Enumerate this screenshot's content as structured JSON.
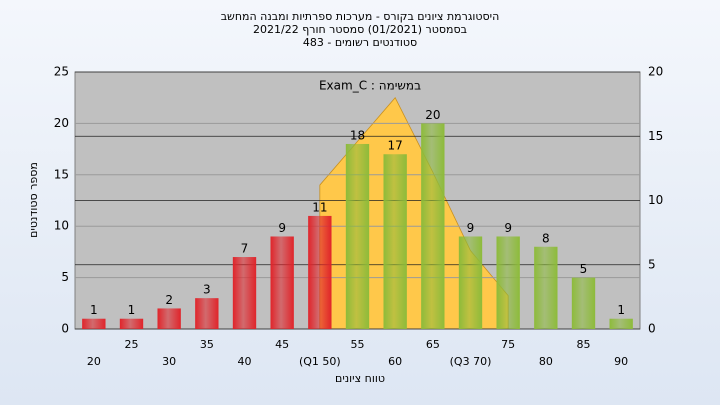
{
  "chart_data": {
    "type": "bar",
    "title": "היסטוגרמת ציונים בקורס - מערכות ספרתיות ומבנה המחשב",
    "subtitle": "בסמסטר  (01/2021)  סמסטר חורף  2021/22",
    "subtitle2": "483 - סטודנטים רשומים",
    "annotation": "במשימה : Exam_C",
    "x_label": "טווח ציונים",
    "y_label": "מספר סטודנטים",
    "categories": [
      "20",
      "25",
      "30",
      "35",
      "40",
      "45",
      "(Q1 50)",
      "55",
      "60",
      "65",
      "(Q3 70)",
      "75",
      "80",
      "85",
      "90"
    ],
    "values": [
      1,
      1,
      2,
      3,
      7,
      9,
      11,
      18,
      17,
      20,
      9,
      9,
      8,
      5,
      1
    ],
    "colors": [
      "#e0242a",
      "#e0242a",
      "#e0242a",
      "#e0242a",
      "#e0242a",
      "#e0242a",
      "#e0242a",
      "#8dbb3a",
      "#8dbb3a",
      "#8dbb3a",
      "#8dbb3a",
      "#8dbb3a",
      "#8dbb3a",
      "#8dbb3a",
      "#8dbb3a"
    ],
    "area": {
      "color": "#ffc84a",
      "axis": "y2",
      "values": [
        null,
        null,
        null,
        null,
        null,
        null,
        11.2,
        14.6,
        18,
        12.2,
        6.1,
        2.6,
        null,
        null,
        null
      ]
    },
    "ylim": [
      0,
      25
    ],
    "yticks": [
      0,
      5,
      10,
      15,
      20,
      25
    ],
    "y2lim": [
      0,
      20
    ],
    "y2ticks": [
      0,
      5,
      10,
      15,
      20
    ],
    "grid": true
  }
}
